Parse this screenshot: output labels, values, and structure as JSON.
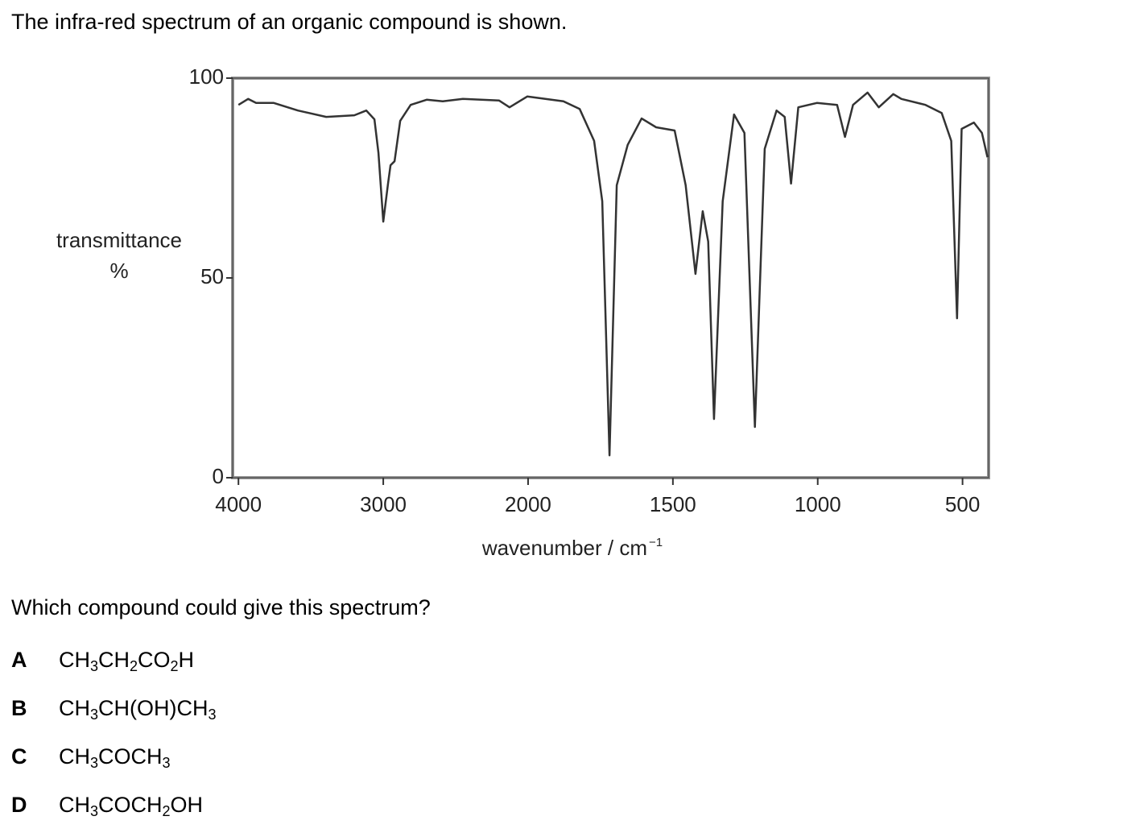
{
  "intro": "The infra-red spectrum of an organic compound is shown.",
  "chart_data": {
    "type": "line",
    "ylabel": [
      "transmittance",
      "%"
    ],
    "xlabel": "wavenumber / cm",
    "xlabel_sup": "−1",
    "xlim": [
      4040,
      410
    ],
    "ylim": [
      0,
      100
    ],
    "xticks": [
      4000,
      3000,
      2000,
      1500,
      1000,
      500
    ],
    "yticks": [
      0,
      50,
      100
    ],
    "xscale": {
      "change_at": 2000,
      "ratio": 2
    },
    "x": [
      4000,
      3933,
      3878,
      3756,
      3589,
      3394,
      3200,
      3117,
      3061,
      3033,
      3000,
      2967,
      2950,
      2922,
      2883,
      2811,
      2700,
      2589,
      2450,
      2200,
      2128,
      2006,
      1878,
      1822,
      1772,
      1744,
      1719,
      1694,
      1656,
      1608,
      1558,
      1494,
      1456,
      1422,
      1397,
      1378,
      1358,
      1328,
      1289,
      1253,
      1217,
      1183,
      1142,
      1114,
      1092,
      1067,
      1003,
      933,
      906,
      878,
      828,
      789,
      739,
      711,
      628,
      572,
      539,
      519,
      503,
      461,
      433,
      414
    ],
    "series": [
      {
        "color": "#333333",
        "values": [
          93.3,
          94.8,
          93.8,
          93.8,
          91.9,
          90.3,
          90.7,
          91.9,
          89.7,
          81.3,
          64.1,
          73.6,
          78.2,
          79.2,
          89.3,
          93.3,
          94.6,
          94.2,
          94.8,
          94.4,
          92.7,
          95.4,
          94.2,
          92.3,
          84.3,
          69.2,
          5.6,
          73.2,
          83.3,
          89.9,
          87.7,
          86.9,
          73.2,
          51.0,
          66.7,
          59.1,
          14.7,
          69.2,
          90.9,
          86.3,
          12.7,
          82.3,
          91.9,
          90.3,
          73.6,
          92.7,
          93.8,
          93.3,
          85.3,
          93.3,
          96.4,
          92.7,
          96.0,
          94.8,
          93.3,
          91.3,
          84.3,
          39.9,
          87.3,
          88.9,
          86.3,
          80.2
        ]
      }
    ]
  },
  "question": "Which compound could give this spectrum?",
  "options": [
    {
      "letter": "A",
      "formula": [
        "CH",
        "3",
        "CH",
        "2",
        "CO",
        "2",
        "H"
      ]
    },
    {
      "letter": "B",
      "formula": [
        "CH",
        "3",
        "CH(OH)CH",
        "3"
      ]
    },
    {
      "letter": "C",
      "formula": [
        "CH",
        "3",
        "COCH",
        "3"
      ]
    },
    {
      "letter": "D",
      "formula": [
        "CH",
        "3",
        "COCH",
        "2",
        "OH"
      ]
    }
  ]
}
